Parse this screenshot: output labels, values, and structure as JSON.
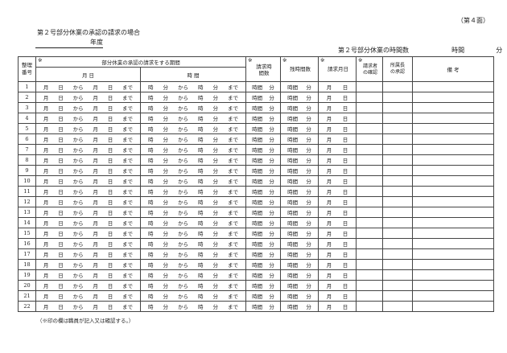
{
  "page_number": "（第４面）",
  "title": "第２号部分休業の承認の請求の場合",
  "year_label": "年度",
  "hours_summary": {
    "label": "第２号部分休業の時間数",
    "hours_unit": "時間",
    "minutes_unit": "分"
  },
  "table": {
    "mark": "※",
    "headers": {
      "number": "整理番号",
      "period": "部分休業の承認の請求をする期間",
      "date": "月 日",
      "time": "時 間",
      "requested_hours": "請求時間数",
      "remaining_hours": "残時間数",
      "request_date": "請求月日",
      "requester_confirm": "請求者の確認",
      "manager_approval": "所属長の承認",
      "remarks": "備 考"
    },
    "row_template": {
      "date": [
        "月",
        "日",
        "から",
        "月",
        "日",
        "まで"
      ],
      "time": [
        "時",
        "分",
        "から",
        "時",
        "分",
        "まで"
      ],
      "requested": [
        "時間",
        "分"
      ],
      "remaining": [
        "時間",
        "分"
      ],
      "request_date": [
        "月",
        "日"
      ]
    },
    "rows": [
      "1",
      "2",
      "3",
      "4",
      "5",
      "6",
      "7",
      "8",
      "9",
      "10",
      "11",
      "12",
      "13",
      "14",
      "15",
      "16",
      "17",
      "18",
      "19",
      "20",
      "21",
      "22"
    ]
  },
  "footnote": "（※印の欄は職員が記入又は確認する。）"
}
